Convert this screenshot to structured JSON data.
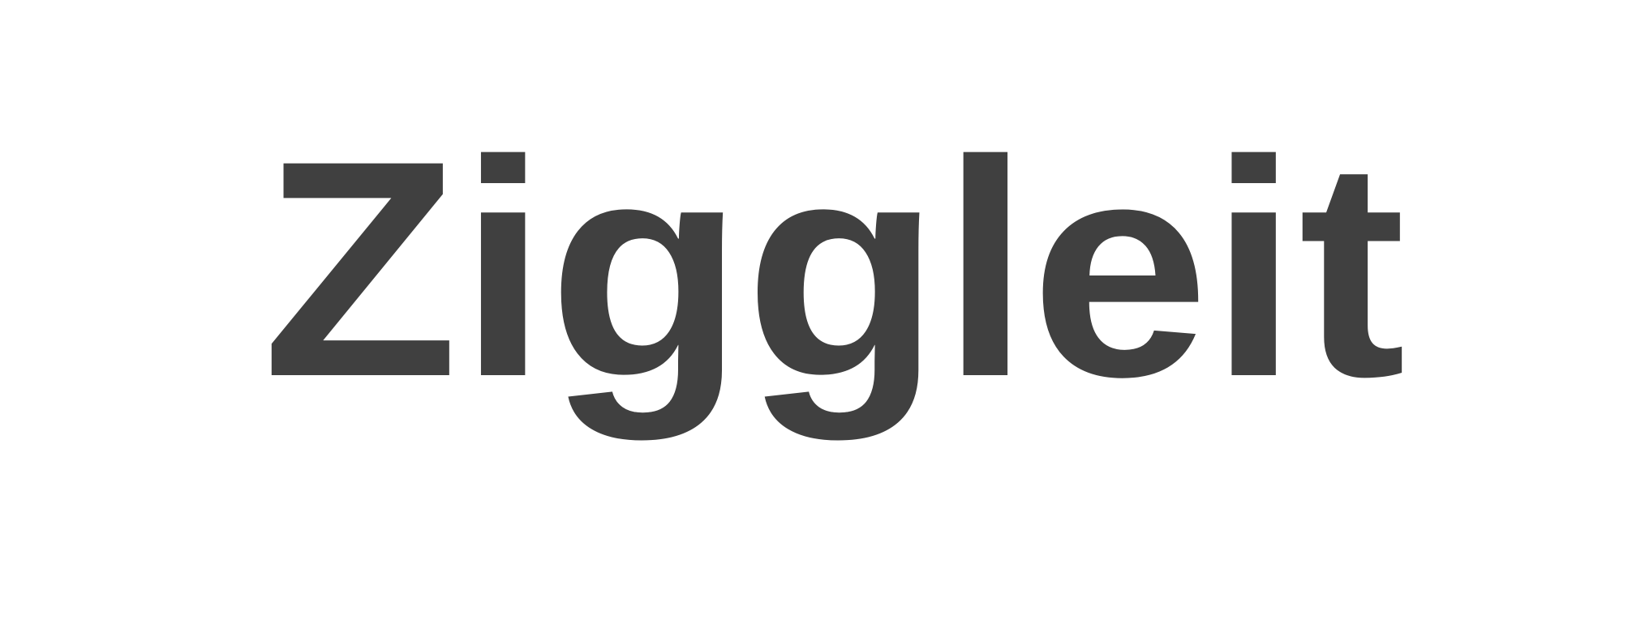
{
  "logo": {
    "text": "Ziggleit"
  }
}
